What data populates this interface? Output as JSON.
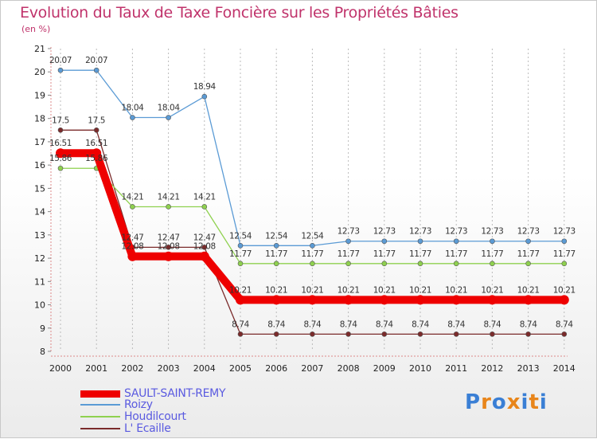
{
  "chart_data": {
    "type": "line",
    "title": "Evolution du Taux de Taxe Foncière sur les Propriétés Bâties",
    "ylabel": "(en %)",
    "xlabel": "",
    "ylim": [
      8,
      21
    ],
    "yticks": [
      "8",
      "9",
      "10",
      "11",
      "12",
      "13",
      "14",
      "15",
      "16",
      "17",
      "18",
      "19",
      "20",
      "21"
    ],
    "categories": [
      "2000",
      "2001",
      "2002",
      "2003",
      "2004",
      "2005",
      "2006",
      "2007",
      "2008",
      "2009",
      "2010",
      "2011",
      "2012",
      "2013",
      "2014"
    ],
    "series": [
      {
        "name": "SAULT-SAINT-REMY",
        "color": "#ee0000",
        "values": [
          16.51,
          16.51,
          12.08,
          12.08,
          12.08,
          10.21,
          10.21,
          10.21,
          10.21,
          10.21,
          10.21,
          10.21,
          10.21,
          10.21,
          10.21
        ],
        "labels": [
          "16.51",
          "16.51",
          "12.08",
          "12.08",
          "12.08",
          "10.21",
          "10.21",
          "10.21",
          "10.21",
          "10.21",
          "10.21",
          "10.21",
          "10.21",
          "10.21",
          "10.21"
        ]
      },
      {
        "name": "Roizy",
        "color": "#5b9bd5",
        "values": [
          20.07,
          20.07,
          18.04,
          18.04,
          18.94,
          12.54,
          12.54,
          12.54,
          12.73,
          12.73,
          12.73,
          12.73,
          12.73,
          12.73,
          12.73
        ],
        "labels": [
          "20.07",
          "20.07",
          "18.04",
          "18.04",
          "18.94",
          "12.54",
          "12.54",
          "12.54",
          "12.73",
          "12.73",
          "12.73",
          "12.73",
          "12.73",
          "12.73",
          "12.73"
        ]
      },
      {
        "name": "Houdilcourt",
        "color": "#8fd14f",
        "values": [
          15.86,
          15.86,
          14.21,
          14.21,
          14.21,
          11.77,
          11.77,
          11.77,
          11.77,
          11.77,
          11.77,
          11.77,
          11.77,
          11.77,
          11.77
        ],
        "labels": [
          "15.86",
          "15.86",
          "14.21",
          "14.21",
          "14.21",
          "11.77",
          "11.77",
          "11.77",
          "11.77",
          "11.77",
          "11.77",
          "11.77",
          "11.77",
          "11.77",
          "11.77"
        ]
      },
      {
        "name": "L' Ecaille",
        "color": "#7b2b2b",
        "values": [
          17.5,
          17.5,
          12.47,
          12.47,
          12.47,
          8.74,
          8.74,
          8.74,
          8.74,
          8.74,
          8.74,
          8.74,
          8.74,
          8.74,
          8.74
        ],
        "labels": [
          "17.5",
          "17.5",
          "12.47",
          "12.47",
          "12.47",
          "8.74",
          "8.74",
          "8.74",
          "8.74",
          "8.74",
          "8.74",
          "8.74",
          "8.74",
          "8.74",
          "8.74"
        ]
      }
    ],
    "legend": [
      "SAULT-SAINT-REMY",
      "Roizy",
      "Houdilcourt",
      "L' Ecaille"
    ],
    "legend_position": "bottom-left"
  },
  "logo": {
    "letters": [
      "P",
      "r",
      "o",
      "x",
      "i",
      "t",
      "i"
    ],
    "colors": [
      "#3a7fd5",
      "#e8851a",
      "#3a7fd5",
      "#e8851a",
      "#3a7fd5",
      "#e8851a",
      "#3a7fd5"
    ]
  }
}
